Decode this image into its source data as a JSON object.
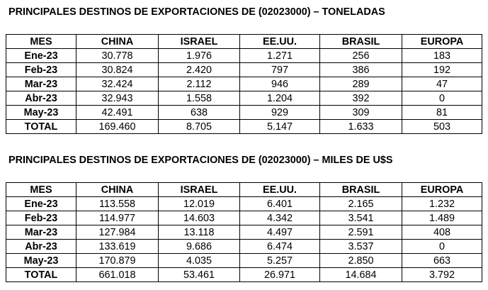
{
  "tables": [
    {
      "title": "PRINCIPALES DESTINOS DE EXPORTACIONES DE (02023000) – TONELADAS",
      "headers": [
        "MES",
        "CHINA",
        "ISRAEL",
        "EE.UU.",
        "BRASIL",
        "EUROPA"
      ],
      "rows": [
        [
          "Ene-23",
          "30.778",
          "1.976",
          "1.271",
          "256",
          "183"
        ],
        [
          "Feb-23",
          "30.824",
          "2.420",
          "797",
          "386",
          "192"
        ],
        [
          "Mar-23",
          "32.424",
          "2.112",
          "946",
          "289",
          "47"
        ],
        [
          "Abr-23",
          "32.943",
          "1.558",
          "1.204",
          "392",
          "0"
        ],
        [
          "May-23",
          "42.491",
          "638",
          "929",
          "309",
          "81"
        ],
        [
          "TOTAL",
          "169.460",
          "8.705",
          "5.147",
          "1.633",
          "503"
        ]
      ]
    },
    {
      "title": "PRINCIPALES DESTINOS DE EXPORTACIONES DE (02023000) – MILES DE U$S",
      "headers": [
        "MES",
        "CHINA",
        "ISRAEL",
        "EE.UU.",
        "BRASIL",
        "EUROPA"
      ],
      "rows": [
        [
          "Ene-23",
          "113.558",
          "12.019",
          "6.401",
          "2.165",
          "1.232"
        ],
        [
          "Feb-23",
          "114.977",
          "14.603",
          "4.342",
          "3.541",
          "1.489"
        ],
        [
          "Mar-23",
          "127.984",
          "13.118",
          "4.497",
          "2.591",
          "408"
        ],
        [
          "Abr-23",
          "133.619",
          "9.686",
          "6.474",
          "3.537",
          "0"
        ],
        [
          "May-23",
          "170.879",
          "4.035",
          "5.257",
          "2.850",
          "663"
        ],
        [
          "TOTAL",
          "661.018",
          "53.461",
          "26.971",
          "14.684",
          "3.792"
        ]
      ]
    }
  ]
}
